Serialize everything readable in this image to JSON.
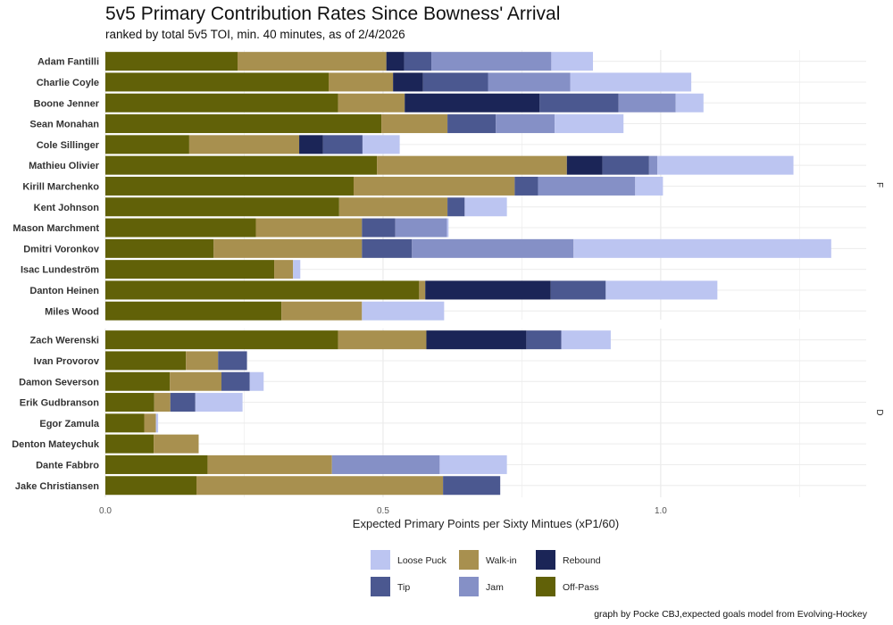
{
  "chart_data": {
    "type": "bar",
    "orientation": "horizontal",
    "stacked": true,
    "title": "5v5 Primary Contribution Rates Since Bowness' Arrival",
    "subtitle": "ranked by total 5v5 TOI, min. 40 minutes, as of 2/4/2026",
    "xlabel": "Expected Primary Points per Sixty Mintues (xP1/60)",
    "xlim": [
      0,
      1.37
    ],
    "xticks": [
      0.0,
      0.5,
      1.0
    ],
    "xtick_labels": [
      "0.0",
      "0.5",
      "1.0"
    ],
    "caption": "graph by Pocke CBJ,expected goals model from Evolving-Hockey",
    "stack_order": [
      "Off-Pass",
      "Walk-in",
      "Rebound",
      "Tip",
      "Jam",
      "Loose Puck"
    ],
    "legend": [
      {
        "name": "Loose Puck",
        "color": "#bcc5f1"
      },
      {
        "name": "Tip",
        "color": "#4b5890"
      },
      {
        "name": "Walk-in",
        "color": "#a8904f"
      },
      {
        "name": "Jam",
        "color": "#8590c6"
      },
      {
        "name": "Rebound",
        "color": "#1b2557"
      },
      {
        "name": "Off-Pass",
        "color": "#616108"
      }
    ],
    "colors": {
      "Off-Pass": "#616108",
      "Walk-in": "#a8904f",
      "Rebound": "#1b2557",
      "Tip": "#4b5890",
      "Jam": "#8590c6",
      "Loose Puck": "#bcc5f1"
    },
    "facets": [
      {
        "label": "F",
        "players": [
          {
            "name": "Adam Fantilli",
            "values": {
              "Off-Pass": 0.238,
              "Walk-in": 0.268,
              "Rebound": 0.032,
              "Tip": 0.049,
              "Jam": 0.216,
              "Loose Puck": 0.075
            }
          },
          {
            "name": "Charlie Coyle",
            "values": {
              "Off-Pass": 0.402,
              "Walk-in": 0.116,
              "Rebound": 0.054,
              "Tip": 0.117,
              "Jam": 0.148,
              "Loose Puck": 0.218
            }
          },
          {
            "name": "Boone Jenner",
            "values": {
              "Off-Pass": 0.419,
              "Walk-in": 0.12,
              "Rebound": 0.243,
              "Tip": 0.142,
              "Jam": 0.103,
              "Loose Puck": 0.05
            }
          },
          {
            "name": "Sean Monahan",
            "values": {
              "Off-Pass": 0.497,
              "Walk-in": 0.119,
              "Rebound": 0.0,
              "Tip": 0.087,
              "Jam": 0.106,
              "Loose Puck": 0.124
            }
          },
          {
            "name": "Cole Sillinger",
            "values": {
              "Off-Pass": 0.151,
              "Walk-in": 0.198,
              "Rebound": 0.043,
              "Tip": 0.071,
              "Jam": 0.0,
              "Loose Puck": 0.067
            }
          },
          {
            "name": "Mathieu Olivier",
            "values": {
              "Off-Pass": 0.489,
              "Walk-in": 0.342,
              "Rebound": 0.064,
              "Tip": 0.084,
              "Jam": 0.015,
              "Loose Puck": 0.245
            }
          },
          {
            "name": "Kirill Marchenko",
            "values": {
              "Off-Pass": 0.447,
              "Walk-in": 0.29,
              "Rebound": 0.0,
              "Tip": 0.042,
              "Jam": 0.175,
              "Loose Puck": 0.05
            }
          },
          {
            "name": "Kent Johnson",
            "values": {
              "Off-Pass": 0.421,
              "Walk-in": 0.195,
              "Rebound": 0.0,
              "Tip": 0.031,
              "Jam": 0.0,
              "Loose Puck": 0.076
            }
          },
          {
            "name": "Mason Marchment",
            "values": {
              "Off-Pass": 0.271,
              "Walk-in": 0.191,
              "Rebound": 0.0,
              "Tip": 0.06,
              "Jam": 0.093,
              "Loose Puck": 0.003
            }
          },
          {
            "name": "Dmitri Voronkov",
            "values": {
              "Off-Pass": 0.195,
              "Walk-in": 0.267,
              "Rebound": 0.0,
              "Tip": 0.09,
              "Jam": 0.291,
              "Loose Puck": 0.464
            }
          },
          {
            "name": "Isac Lundeström",
            "values": {
              "Off-Pass": 0.304,
              "Walk-in": 0.034,
              "Rebound": 0.0,
              "Tip": 0.0,
              "Jam": 0.0,
              "Loose Puck": 0.013
            }
          },
          {
            "name": "Danton Heinen",
            "values": {
              "Off-Pass": 0.565,
              "Walk-in": 0.011,
              "Rebound": 0.226,
              "Tip": 0.099,
              "Jam": 0.0,
              "Loose Puck": 0.201
            }
          },
          {
            "name": "Miles Wood",
            "values": {
              "Off-Pass": 0.317,
              "Walk-in": 0.145,
              "Rebound": 0.0,
              "Tip": 0.0,
              "Jam": 0.0,
              "Loose Puck": 0.148
            }
          }
        ]
      },
      {
        "label": "D",
        "players": [
          {
            "name": "Zach Werenski",
            "values": {
              "Off-Pass": 0.419,
              "Walk-in": 0.159,
              "Rebound": 0.18,
              "Tip": 0.063,
              "Jam": 0.0,
              "Loose Puck": 0.089
            }
          },
          {
            "name": "Ivan Provorov",
            "values": {
              "Off-Pass": 0.145,
              "Walk-in": 0.058,
              "Rebound": 0.0,
              "Tip": 0.052,
              "Jam": 0.0,
              "Loose Puck": 0.0
            }
          },
          {
            "name": "Damon Severson",
            "values": {
              "Off-Pass": 0.116,
              "Walk-in": 0.093,
              "Rebound": 0.0,
              "Tip": 0.051,
              "Jam": 0.0,
              "Loose Puck": 0.025
            }
          },
          {
            "name": "Erik Gudbranson",
            "values": {
              "Off-Pass": 0.088,
              "Walk-in": 0.029,
              "Rebound": 0.0,
              "Tip": 0.045,
              "Jam": 0.0,
              "Loose Puck": 0.085
            }
          },
          {
            "name": "Egor Zamula",
            "values": {
              "Off-Pass": 0.07,
              "Walk-in": 0.021,
              "Rebound": 0.0,
              "Tip": 0.0,
              "Jam": 0.0,
              "Loose Puck": 0.004
            }
          },
          {
            "name": "Denton Mateychuk",
            "values": {
              "Off-Pass": 0.087,
              "Walk-in": 0.081,
              "Rebound": 0.0,
              "Tip": 0.0,
              "Jam": 0.0,
              "Loose Puck": 0.0
            }
          },
          {
            "name": "Dante Fabbro",
            "values": {
              "Off-Pass": 0.184,
              "Walk-in": 0.224,
              "Rebound": 0.0,
              "Tip": 0.0,
              "Jam": 0.194,
              "Loose Puck": 0.121
            }
          },
          {
            "name": "Jake Christiansen",
            "values": {
              "Off-Pass": 0.164,
              "Walk-in": 0.444,
              "Rebound": 0.0,
              "Tip": 0.103,
              "Jam": 0.0,
              "Loose Puck": 0.0
            }
          }
        ]
      }
    ]
  }
}
